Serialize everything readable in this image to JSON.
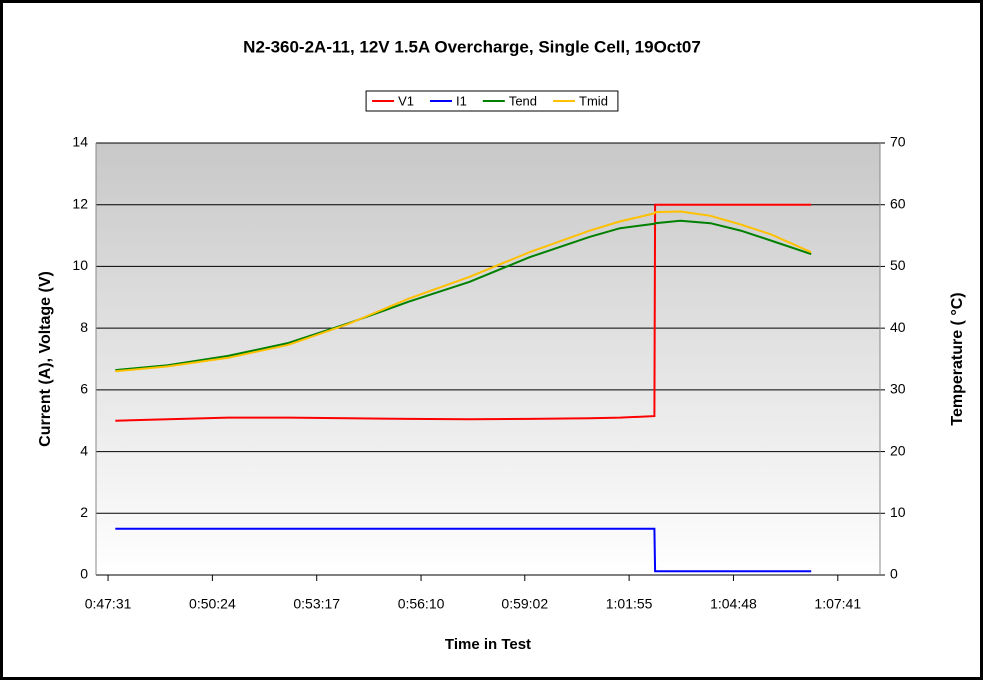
{
  "chart_data": {
    "type": "line",
    "title": "N2-360-2A-11, 12V 1.5A Overcharge, Single Cell, 19Oct07",
    "x_label": "Time in Test",
    "y_label": "Current (A), Voltage (V)",
    "y2_label": "Temperature (  °C)",
    "x": [
      2863,
      2950,
      3050,
      3150,
      3250,
      3350,
      3450,
      3550,
      3650,
      3700,
      3757,
      3758,
      3800,
      3850,
      3900,
      3950,
      4017
    ],
    "series": [
      {
        "name": "V1",
        "color": "#ff0000",
        "values": [
          5.0,
          5.05,
          5.1,
          5.1,
          5.08,
          5.06,
          5.05,
          5.06,
          5.08,
          5.1,
          5.15,
          12.0,
          12.0,
          12.0,
          12.0,
          12.0,
          12.0
        ]
      },
      {
        "name": "I1",
        "color": "#0000ff",
        "values": [
          1.5,
          1.5,
          1.5,
          1.5,
          1.5,
          1.5,
          1.5,
          1.5,
          1.5,
          1.5,
          1.5,
          0.12,
          0.12,
          0.12,
          0.12,
          0.12,
          0.12
        ]
      },
      {
        "name": "Tend",
        "color": "#008000",
        "axis": "y2",
        "values": [
          33.2,
          34.0,
          35.5,
          37.6,
          40.8,
          44.3,
          47.5,
          51.5,
          54.8,
          56.2,
          56.9,
          57.0,
          57.4,
          57.0,
          55.8,
          54.2,
          52.0
        ]
      },
      {
        "name": "Tmid",
        "color": "#ffc000",
        "axis": "y2",
        "values": [
          33.0,
          33.8,
          35.2,
          37.3,
          40.7,
          44.8,
          48.3,
          52.3,
          55.8,
          57.3,
          58.6,
          58.8,
          58.9,
          58.2,
          56.8,
          55.2,
          52.3
        ]
      }
    ],
    "xlim": [
      2831,
      4131
    ],
    "xticks": [
      {
        "value": 2851,
        "label": "0:47:31"
      },
      {
        "value": 3024,
        "label": "0:50:24"
      },
      {
        "value": 3197,
        "label": "0:53:17"
      },
      {
        "value": 3370,
        "label": "0:56:10"
      },
      {
        "value": 3542,
        "label": "0:59:02"
      },
      {
        "value": 3715,
        "label": "1:01:55"
      },
      {
        "value": 3888,
        "label": "1:04:48"
      },
      {
        "value": 4061,
        "label": "1:07:41"
      }
    ],
    "ylim": [
      0,
      14
    ],
    "yticks": [
      0,
      2,
      4,
      6,
      8,
      10,
      12,
      14
    ],
    "y2lim": [
      0,
      70
    ],
    "y2ticks": [
      0,
      10,
      20,
      30,
      40,
      50,
      60,
      70
    ],
    "grid": true,
    "legend": "top"
  }
}
